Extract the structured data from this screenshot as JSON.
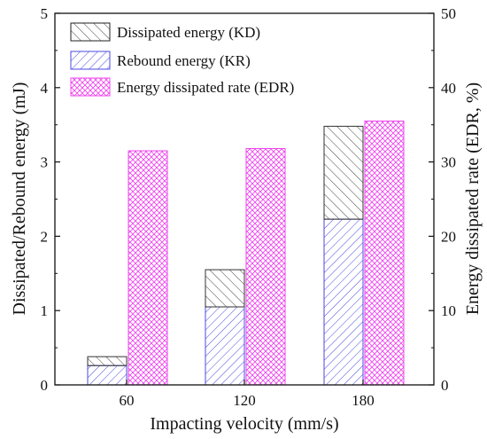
{
  "chart_data": {
    "type": "bar",
    "categories": [
      "60",
      "120",
      "180"
    ],
    "xlabel": "Impacting velocity (mm/s)",
    "ylabel_left": "Dissipated/Rebound energy (mJ)",
    "ylabel_right": "Energy dissipated rate (EDR, %)",
    "ylim_left": [
      0,
      5
    ],
    "ylim_right": [
      0,
      50
    ],
    "yticks_left": [
      "0",
      "1",
      "2",
      "3",
      "4",
      "5"
    ],
    "yticks_right": [
      "0",
      "10",
      "20",
      "30",
      "40",
      "50"
    ],
    "grid": false,
    "legend_position": "top-left",
    "legend": [
      "Dissipated energy (KD)",
      "Rebound energy (KR)",
      "Energy dissipated rate (EDR)"
    ],
    "series": [
      {
        "name": "Rebound energy (KR)",
        "axis": "left",
        "stack": "energy",
        "values": [
          0.26,
          1.05,
          2.23
        ],
        "color": "#4a4ae0",
        "hatch": "diagonal"
      },
      {
        "name": "Dissipated energy (KD)",
        "axis": "left",
        "stack": "energy",
        "values": [
          0.12,
          0.5,
          1.25
        ],
        "color": "#333333",
        "hatch": "anti-diagonal"
      },
      {
        "name": "Energy dissipated rate (EDR)",
        "axis": "right",
        "values": [
          31.5,
          31.8,
          35.5
        ],
        "color": "#ee44ee",
        "hatch": "crosshatch"
      }
    ]
  }
}
